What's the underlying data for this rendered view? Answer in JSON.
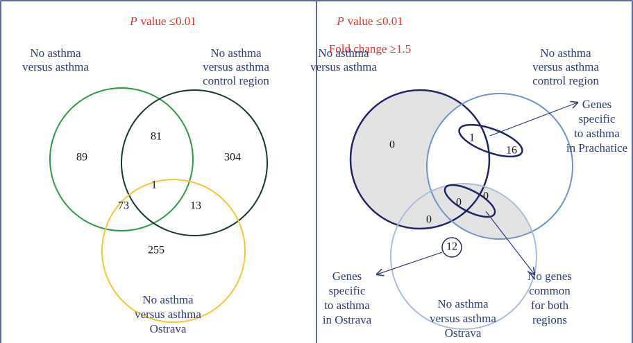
{
  "left": {
    "header": {
      "italic": "P",
      "text": "value ≤0.01"
    },
    "sets": [
      [
        "No asthma",
        "versus asthma"
      ],
      [
        "No asthma",
        "versus asthma",
        "control region"
      ],
      [
        "No asthma",
        "versus asthma",
        "Ostrava"
      ]
    ],
    "regions": [
      89,
      81,
      304,
      1,
      73,
      13,
      255
    ]
  },
  "right": {
    "header": {
      "italic": "P",
      "text": "value ≤0.01"
    },
    "subheader": "Fold change ≥1.5",
    "sets": [
      [
        "No asthma",
        "versus asthma"
      ],
      [
        "No asthma",
        "versus asthma",
        "control region"
      ],
      [
        "No asthma",
        "versus asthma",
        "Ostrava"
      ]
    ],
    "regions": [
      0,
      1,
      16,
      0,
      0,
      0,
      12
    ],
    "notes": [
      [
        "Genes",
        "specific",
        "to asthma",
        "in Prachatice"
      ],
      [
        "Genes",
        "specific",
        "to asthma",
        "in Ostrava"
      ],
      [
        "No genes",
        "common",
        "for both",
        "regions"
      ]
    ]
  }
}
